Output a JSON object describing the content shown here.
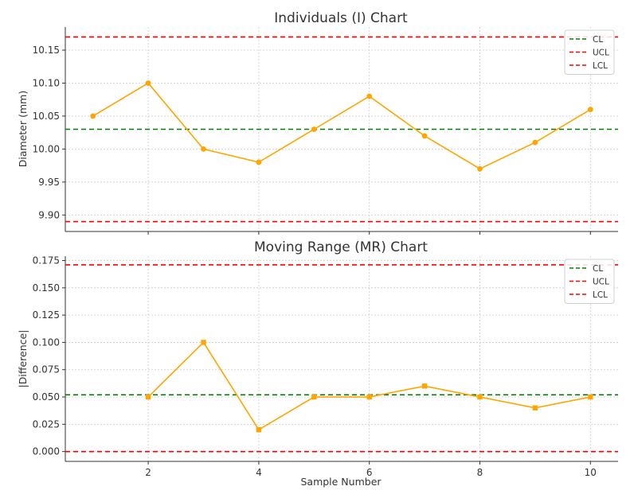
{
  "chart_data": [
    {
      "type": "line",
      "title": "Individuals (I) Chart",
      "xlabel": "",
      "ylabel": "Diameter (mm)",
      "xlim": [
        0.5,
        10.5
      ],
      "ylim": [
        9.875,
        10.185
      ],
      "yticks": [
        9.9,
        9.95,
        10.0,
        10.05,
        10.1,
        10.15
      ],
      "yticklabels": [
        "9.90",
        "9.95",
        "10.00",
        "10.05",
        "10.10",
        "10.15"
      ],
      "xticks": [
        2,
        4,
        6,
        8,
        10
      ],
      "xticklabels": [],
      "grid": true,
      "legend_position": "top-right",
      "series": [
        {
          "marker": "circle",
          "color": "#FFA500",
          "x": [
            1,
            2,
            3,
            4,
            5,
            6,
            7,
            8,
            9,
            10
          ],
          "y": [
            10.05,
            10.1,
            10.0,
            9.98,
            10.03,
            10.08,
            10.02,
            9.97,
            10.01,
            10.06
          ]
        }
      ],
      "reference_lines": [
        {
          "name": "CL",
          "value": 10.03,
          "color": "#008000"
        },
        {
          "name": "UCL",
          "value": 10.17,
          "color": "#FF0000"
        },
        {
          "name": "LCL",
          "value": 9.89,
          "color": "#FF0000"
        }
      ]
    },
    {
      "type": "line",
      "title": "Moving Range (MR) Chart",
      "xlabel": "Sample Number",
      "ylabel": "|Difference|",
      "xlim": [
        0.5,
        10.5
      ],
      "ylim": [
        -0.009,
        0.179
      ],
      "yticks": [
        0.0,
        0.025,
        0.05,
        0.075,
        0.1,
        0.125,
        0.15,
        0.175
      ],
      "yticklabels": [
        "0.000",
        "0.025",
        "0.050",
        "0.075",
        "0.100",
        "0.125",
        "0.150",
        "0.175"
      ],
      "xticks": [
        2,
        4,
        6,
        8,
        10
      ],
      "xticklabels": [
        "2",
        "4",
        "6",
        "8",
        "10"
      ],
      "grid": true,
      "legend_position": "top-right",
      "series": [
        {
          "marker": "square",
          "color": "#FFA500",
          "x": [
            2,
            3,
            4,
            5,
            6,
            7,
            8,
            9,
            10
          ],
          "y": [
            0.05,
            0.1,
            0.02,
            0.05,
            0.05,
            0.06,
            0.05,
            0.04,
            0.05
          ]
        }
      ],
      "reference_lines": [
        {
          "name": "CL",
          "value": 0.052,
          "color": "#008000"
        },
        {
          "name": "UCL",
          "value": 0.171,
          "color": "#FF0000"
        },
        {
          "name": "LCL",
          "value": 0.0,
          "color": "#FF0000"
        }
      ]
    }
  ]
}
